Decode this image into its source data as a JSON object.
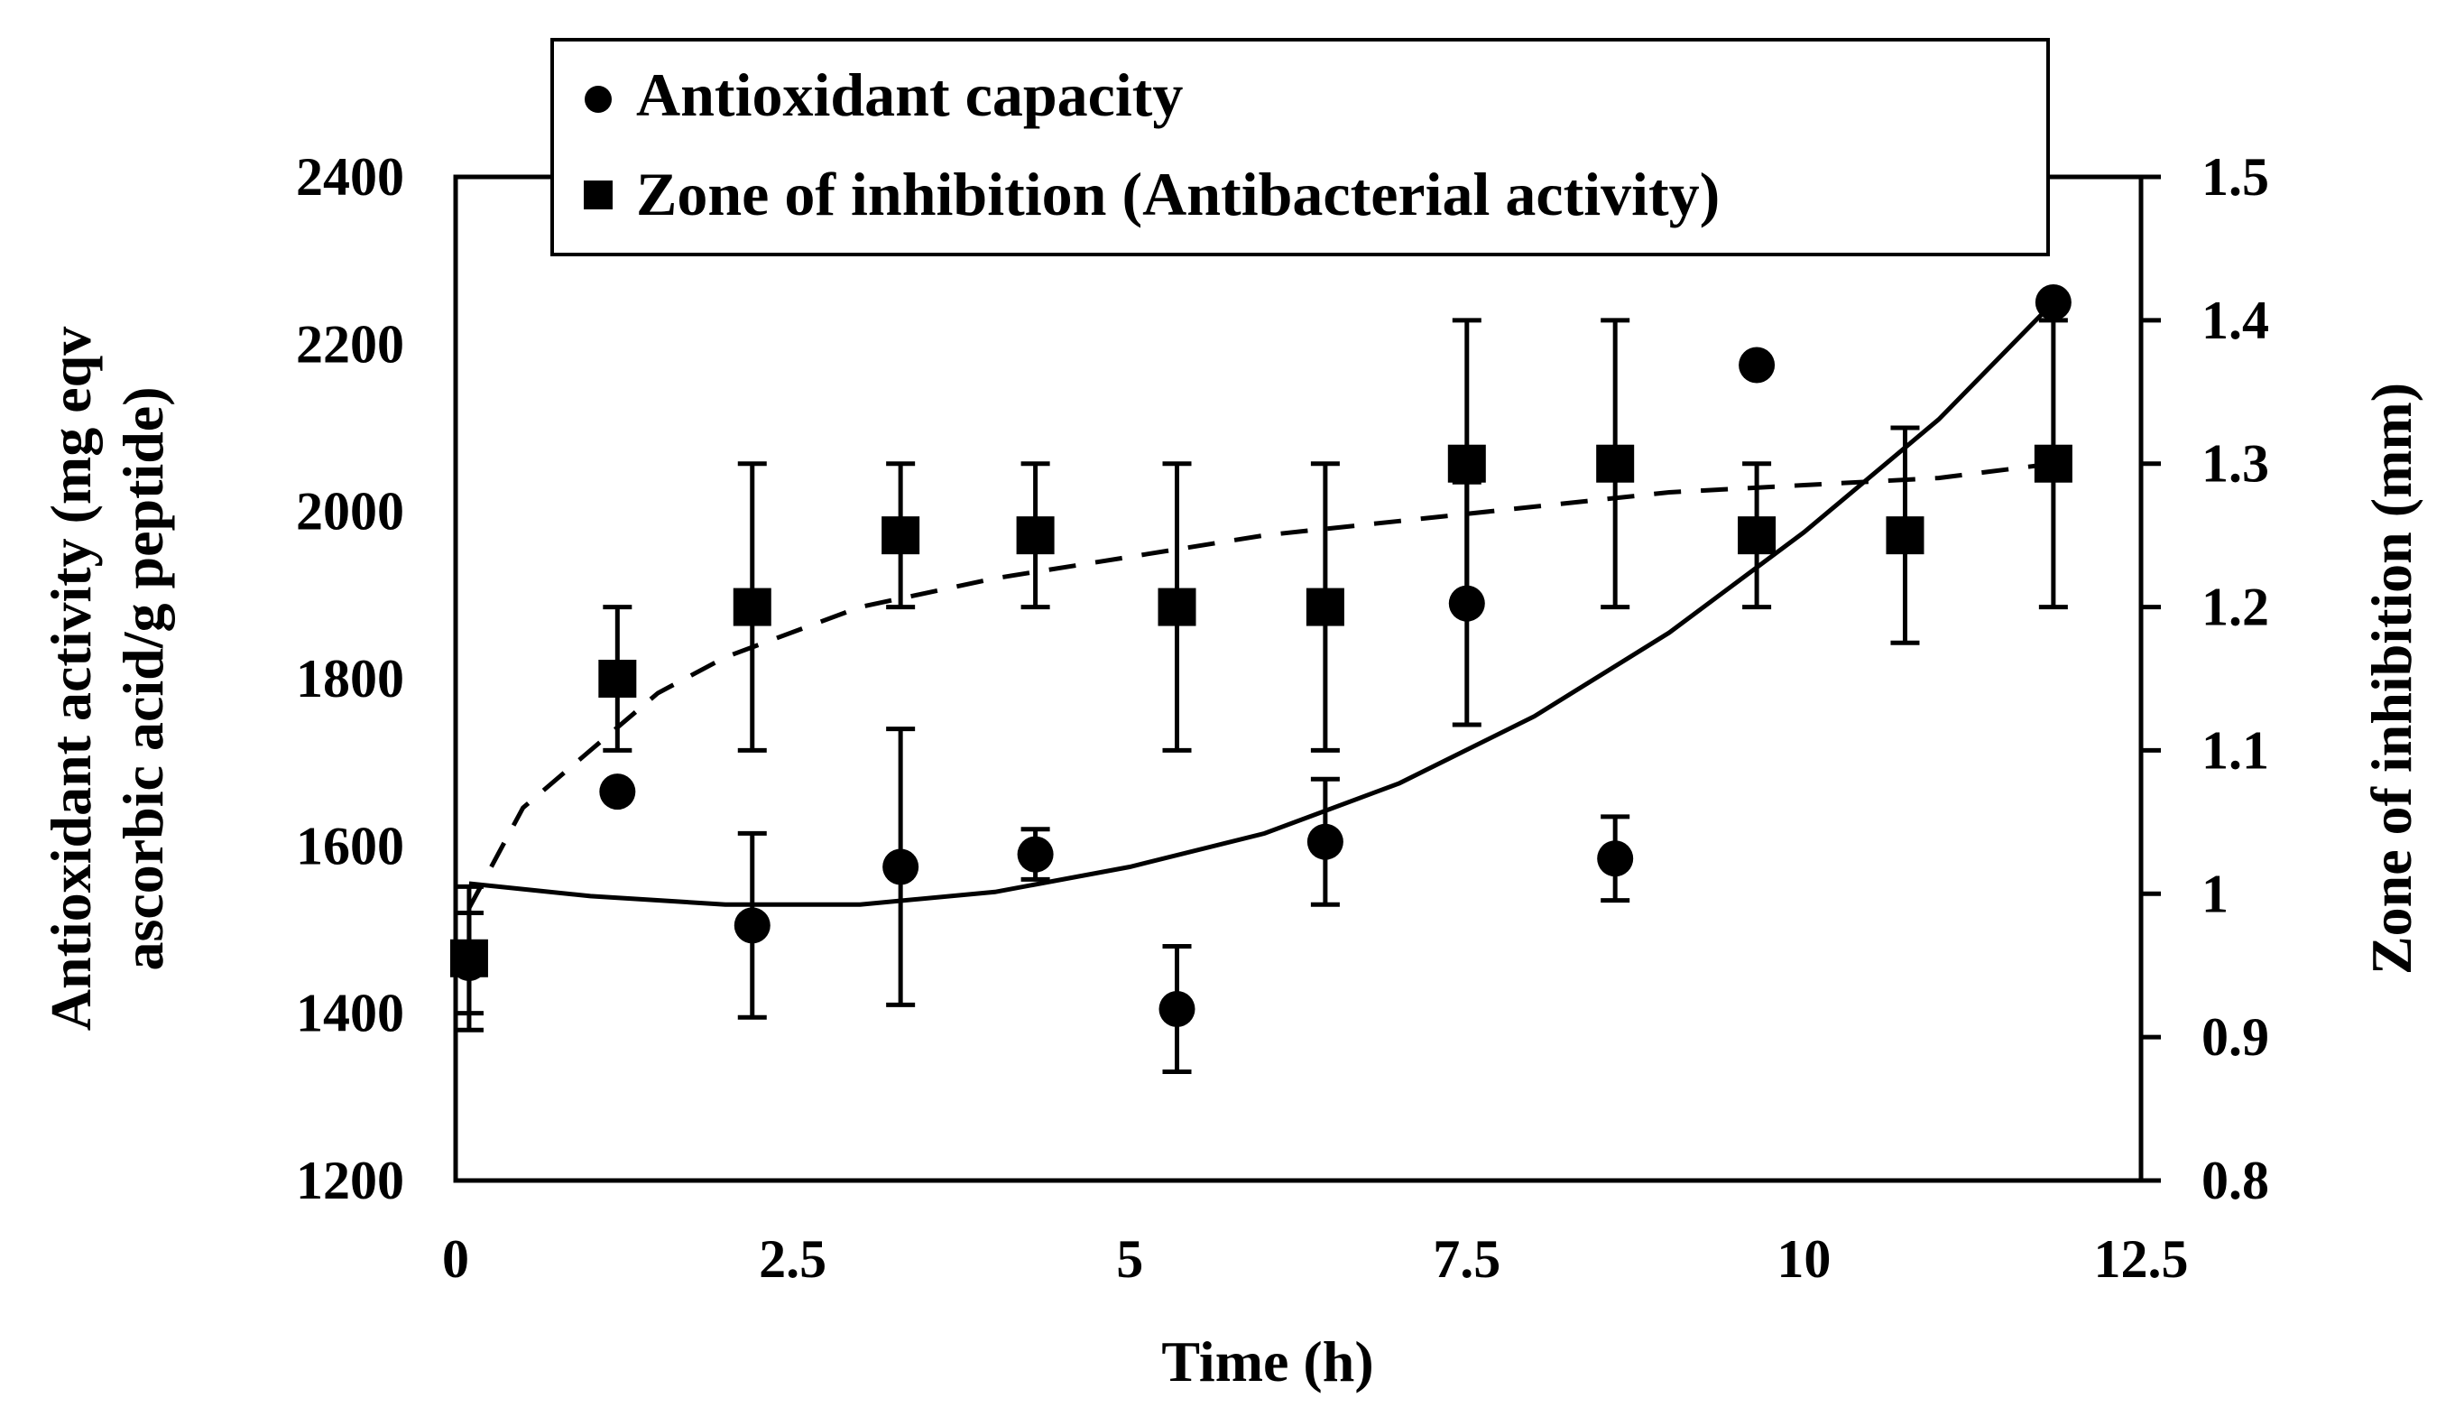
{
  "chart_data": {
    "type": "scatter",
    "xlabel": "Time (h)",
    "ylabel_left": [
      "Antioxidant activity (mg eqv",
      "ascorbic acid/g peptide)"
    ],
    "ylabel_right": "Zone of inhibition (mm)",
    "x_ticks": [
      "0",
      "2.5",
      "5",
      "7.5",
      "10",
      "12.5"
    ],
    "y_left_ticks": [
      "1200",
      "1400",
      "1600",
      "1800",
      "2000",
      "2200",
      "2400"
    ],
    "y_right_ticks": [
      "0.8",
      "0.9",
      "1",
      "1.1",
      "1.2",
      "1.3",
      "1.4",
      "1.5"
    ],
    "xlim": [
      0,
      12.5
    ],
    "ylim_left": [
      1200,
      2400
    ],
    "ylim_right": [
      0.8,
      1.5
    ],
    "legend": {
      "position": "top-center",
      "entries": [
        "Antioxidant capacity",
        "Zone of inhibition (Antibacterial activity)"
      ]
    },
    "series": [
      {
        "name": "Antioxidant capacity",
        "marker": "circle",
        "axis": "left",
        "points": [
          {
            "x": 0.1,
            "y": 1460,
            "err": 60
          },
          {
            "x": 1.2,
            "y": 1665,
            "err": null
          },
          {
            "x": 2.2,
            "y": 1505,
            "err": 110
          },
          {
            "x": 3.3,
            "y": 1575,
            "err": 165
          },
          {
            "x": 4.3,
            "y": 1590,
            "err": 30
          },
          {
            "x": 5.35,
            "y": 1405,
            "err": 75
          },
          {
            "x": 6.45,
            "y": 1605,
            "err": 75
          },
          {
            "x": 7.5,
            "y": 1890,
            "err": 145
          },
          {
            "x": 8.6,
            "y": 1585,
            "err": 50
          },
          {
            "x": 9.65,
            "y": 2175,
            "err": null
          },
          {
            "x": 11.85,
            "y": 2250,
            "err": null
          }
        ],
        "trend": {
          "style": "solid",
          "x": [
            0.1,
            1.0,
            2.0,
            3.0,
            4.0,
            5.0,
            6.0,
            7.0,
            8.0,
            9.0,
            10.0,
            11.0,
            11.85
          ],
          "y": [
            1555,
            1540,
            1530,
            1530,
            1545,
            1575,
            1615,
            1675,
            1755,
            1855,
            1975,
            2110,
            2250
          ]
        }
      },
      {
        "name": "Zone of inhibition (Antibacterial activity)",
        "marker": "square",
        "axis": "right",
        "points": [
          {
            "x": 0.1,
            "y": 0.955,
            "err": 0.05
          },
          {
            "x": 1.2,
            "y": 1.15,
            "err": 0.05
          },
          {
            "x": 2.2,
            "y": 1.2,
            "err": 0.1
          },
          {
            "x": 3.3,
            "y": 1.25,
            "err": 0.05
          },
          {
            "x": 4.3,
            "y": 1.25,
            "err": 0.05
          },
          {
            "x": 5.35,
            "y": 1.2,
            "err": 0.1
          },
          {
            "x": 6.45,
            "y": 1.2,
            "err": 0.1
          },
          {
            "x": 7.5,
            "y": 1.3,
            "err": 0.1
          },
          {
            "x": 8.6,
            "y": 1.3,
            "err": 0.1
          },
          {
            "x": 9.65,
            "y": 1.25,
            "err": 0.05
          },
          {
            "x": 10.75,
            "y": 1.25,
            "err": 0.075
          },
          {
            "x": 11.85,
            "y": 1.3,
            "err": 0.1
          }
        ],
        "trend": {
          "style": "dashed",
          "x": [
            0.1,
            0.5,
            1.0,
            1.5,
            2.0,
            3.0,
            4.0,
            5.0,
            6.0,
            7.0,
            8.0,
            9.0,
            10.0,
            11.0,
            11.85
          ],
          "y": [
            0.99,
            1.06,
            1.1,
            1.14,
            1.165,
            1.2,
            1.22,
            1.235,
            1.25,
            1.26,
            1.27,
            1.28,
            1.285,
            1.29,
            1.3
          ]
        }
      }
    ]
  }
}
